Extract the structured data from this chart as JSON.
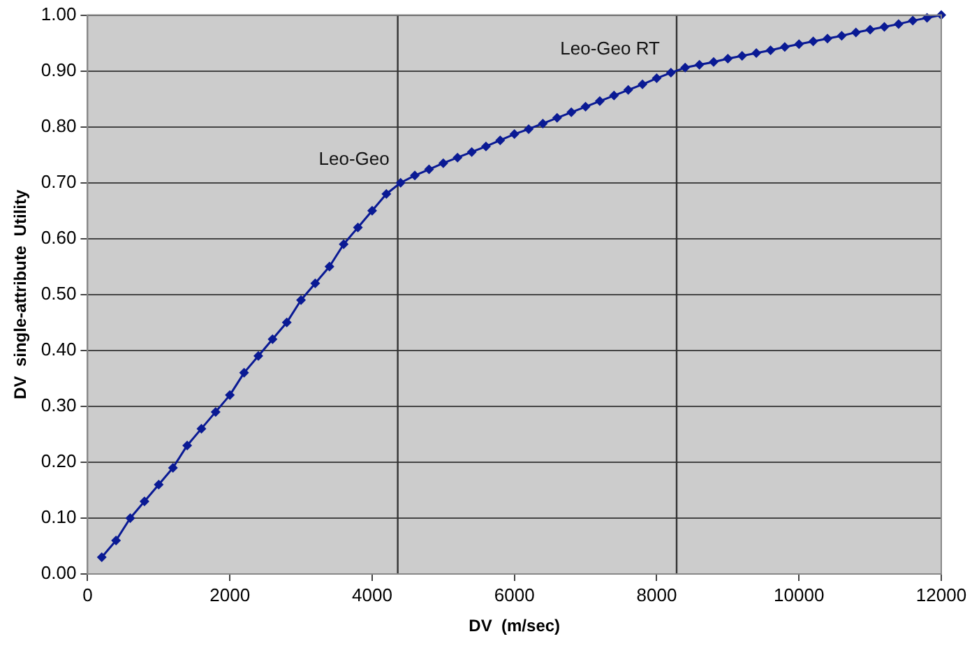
{
  "chart_data": {
    "type": "line",
    "xlabel": "DV  (m/sec)",
    "ylabel": "DV  single-attribute  Utility",
    "series": [
      {
        "color": "#0a1a94",
        "x": [
          200,
          400,
          600,
          800,
          1000,
          1200,
          1400,
          1600,
          1800,
          2000,
          2200,
          2400,
          2600,
          2800,
          3000,
          3200,
          3400,
          3600,
          3800,
          4000,
          4200,
          4400,
          4600,
          4800,
          5000,
          5200,
          5400,
          5600,
          5800,
          6000,
          6200,
          6400,
          6600,
          6800,
          7000,
          7200,
          7400,
          7600,
          7800,
          8000,
          8200,
          8400,
          8600,
          8800,
          9000,
          9200,
          9400,
          9600,
          9800,
          10000,
          10200,
          10400,
          10600,
          10800,
          11000,
          11200,
          11400,
          11600,
          11800,
          12000
        ],
        "values": [
          0.03,
          0.06,
          0.1,
          0.13,
          0.16,
          0.19,
          0.23,
          0.26,
          0.29,
          0.32,
          0.36,
          0.39,
          0.42,
          0.45,
          0.49,
          0.52,
          0.55,
          0.59,
          0.62,
          0.65,
          0.68,
          0.7,
          0.713,
          0.724,
          0.735,
          0.745,
          0.755,
          0.765,
          0.776,
          0.787,
          0.796,
          0.806,
          0.816,
          0.826,
          0.836,
          0.846,
          0.856,
          0.866,
          0.876,
          0.887,
          0.897,
          0.906,
          0.911,
          0.916,
          0.922,
          0.927,
          0.932,
          0.937,
          0.943,
          0.948,
          0.953,
          0.958,
          0.963,
          0.969,
          0.974,
          0.979,
          0.984,
          0.99,
          0.995,
          1.0
        ]
      }
    ],
    "xlim": [
      0,
      12000
    ],
    "xticks": [
      0,
      2000,
      4000,
      6000,
      8000,
      10000,
      12000
    ],
    "ylim": [
      0,
      1
    ],
    "yticks": [
      {
        "value": 0,
        "label": "0.00"
      },
      {
        "value": 0.1,
        "label": "0.10"
      },
      {
        "value": 0.2,
        "label": "0.20"
      },
      {
        "value": 0.3,
        "label": "0.30"
      },
      {
        "value": 0.4,
        "label": "0.40"
      },
      {
        "value": 0.5,
        "label": "0.50"
      },
      {
        "value": 0.6,
        "label": "0.60"
      },
      {
        "value": 0.7,
        "label": "0.70"
      },
      {
        "value": 0.8,
        "label": "0.80"
      },
      {
        "value": 0.9,
        "label": "0.90"
      },
      {
        "value": 1,
        "label": "1.00"
      }
    ],
    "grid": "y",
    "legend": false,
    "marker": "diamond",
    "line_style": "solid",
    "ref_lines": [
      {
        "axis": "x",
        "value": 4360,
        "color": "#333333"
      },
      {
        "axis": "x",
        "value": 8280,
        "color": "#333333"
      }
    ],
    "annotations": [
      {
        "text": "Leo-Geo",
        "x": 4400,
        "y": 0.7
      },
      {
        "text": "Leo-Geo RT",
        "x": 8200,
        "y": 0.897
      }
    ]
  }
}
